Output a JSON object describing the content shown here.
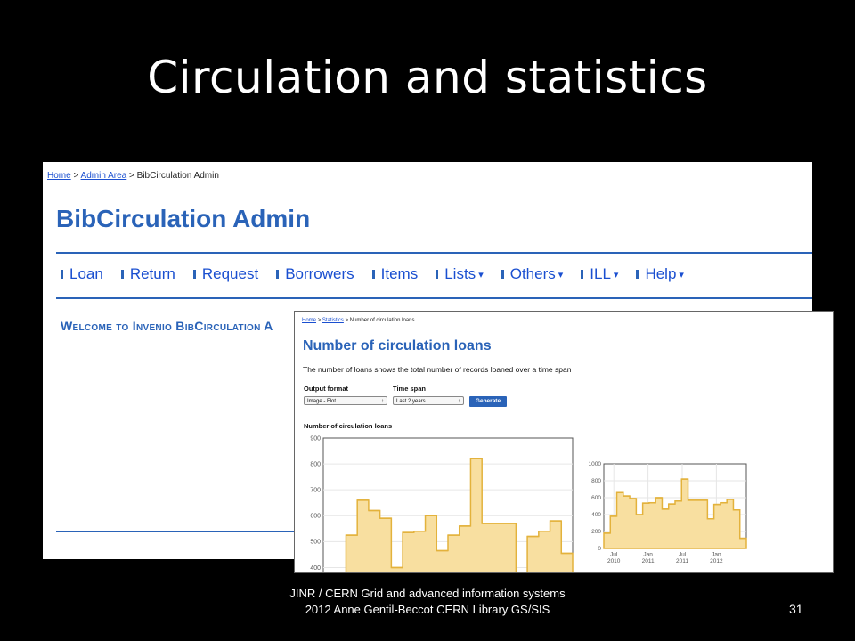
{
  "slide": {
    "title": "Circulation and statistics",
    "footer": "JINR / CERN Grid and advanced information systems 2012 Anne Gentil-Beccot CERN Library GS/SIS",
    "page_number": "31"
  },
  "admin": {
    "breadcrumb": [
      "Home",
      ">",
      "Admin Area",
      ">",
      "BibCirculation Admin"
    ],
    "title": "BibCirculation Admin",
    "nav": [
      {
        "label": "Loan",
        "dropdown": false
      },
      {
        "label": "Return",
        "dropdown": false
      },
      {
        "label": "Request",
        "dropdown": false
      },
      {
        "label": "Borrowers",
        "dropdown": false
      },
      {
        "label": "Items",
        "dropdown": false
      },
      {
        "label": "Lists",
        "dropdown": true
      },
      {
        "label": "Others",
        "dropdown": true
      },
      {
        "label": "ILL",
        "dropdown": true
      },
      {
        "label": "Help",
        "dropdown": true
      }
    ],
    "welcome": "Welcome to Invenio BibCirculation A",
    "accent_color": "#2a63b8"
  },
  "stats": {
    "breadcrumb": [
      "Home",
      ">",
      "Statistics",
      ">",
      "Number of circulation loans"
    ],
    "title": "Number of circulation loans",
    "description": "The number of loans shows the total number of records loaned over a time span",
    "output_format_label": "Output format",
    "output_format_value": "Image - Flot",
    "time_span_label": "Time span",
    "time_span_value": "Last 2 years",
    "generate_label": "Generate",
    "chart_heading": "Number of circulation loans"
  },
  "chart_data": [
    {
      "type": "area",
      "title": "Number of circulation loans",
      "ylim": [
        350,
        900
      ],
      "yticks": [
        900,
        800,
        700,
        600,
        500,
        400
      ],
      "values": [
        360,
        380,
        525,
        660,
        620,
        590,
        400,
        535,
        540,
        600,
        465,
        525,
        560,
        820,
        570,
        570,
        570,
        350,
        520,
        540,
        580,
        455
      ],
      "fill_color": "#f8dfa0",
      "line_color": "#e3b23c",
      "grid": true
    },
    {
      "type": "area",
      "ylim": [
        0,
        1000
      ],
      "yticks": [
        1000,
        800,
        600,
        400,
        200,
        0
      ],
      "xticks": [
        {
          "label": "Jul 2010",
          "pos": 0.07
        },
        {
          "label": "Jan 2011",
          "pos": 0.31
        },
        {
          "label": "Jul 2011",
          "pos": 0.55
        },
        {
          "label": "Jan 2012",
          "pos": 0.79
        }
      ],
      "values": [
        180,
        380,
        660,
        620,
        590,
        400,
        535,
        540,
        600,
        465,
        525,
        560,
        820,
        570,
        570,
        570,
        350,
        520,
        540,
        580,
        455,
        120
      ],
      "fill_color": "#f8dfa0",
      "line_color": "#e3b23c",
      "grid": true
    }
  ]
}
